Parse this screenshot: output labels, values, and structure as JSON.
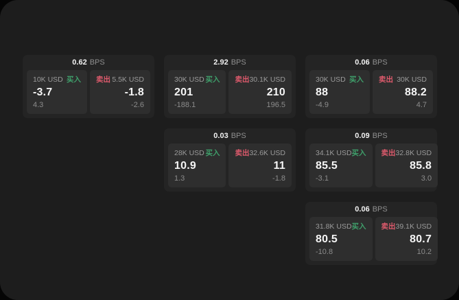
{
  "colors": {
    "outer_background": "#050505",
    "window_background": "#1d1d1d",
    "card_background": "#242424",
    "panel_background": "#2e2e2e",
    "buy_green": "#3f9e6a",
    "sell_red": "#dd5a6c",
    "primary_text": "#f5f5f5",
    "muted_text": "#9b9b9b"
  },
  "labels": {
    "bps_unit": "BPS",
    "buy": "买入",
    "sell": "卖出"
  },
  "cards": [
    {
      "bps": "0.62",
      "unit": "BPS",
      "buy": {
        "amount": "10K USD",
        "side": "买入",
        "value": "-3.7",
        "delta": "4.3"
      },
      "sell": {
        "side": "卖出",
        "amount": "5.5K USD",
        "value": "-1.8",
        "delta": "-2.6"
      }
    },
    {
      "bps": "2.92",
      "unit": "BPS",
      "buy": {
        "amount": "30K USD",
        "side": "买入",
        "value": "201",
        "delta": "-188.1"
      },
      "sell": {
        "side": "卖出",
        "amount": "30.1K USD",
        "value": "210",
        "delta": "196.5"
      }
    },
    {
      "bps": "0.06",
      "unit": "BPS",
      "buy": {
        "amount": "30K USD",
        "side": "买入",
        "value": "88",
        "delta": "-4.9"
      },
      "sell": {
        "side": "卖出",
        "amount": "30K USD",
        "value": "88.2",
        "delta": "4.7"
      }
    },
    {
      "bps": "0.03",
      "unit": "BPS",
      "buy": {
        "amount": "28K USD",
        "side": "买入",
        "value": "10.9",
        "delta": "1.3"
      },
      "sell": {
        "side": "卖出",
        "amount": "32.6K USD",
        "value": "11",
        "delta": "-1.8"
      }
    },
    {
      "bps": "0.09",
      "unit": "BPS",
      "buy": {
        "amount": "34.1K USD",
        "side": "买入",
        "value": "85.5",
        "delta": "-3.1"
      },
      "sell": {
        "side": "卖出",
        "amount": "32.8K USD",
        "value": "85.8",
        "delta": "3.0"
      }
    },
    {
      "bps": "0.06",
      "unit": "BPS",
      "buy": {
        "amount": "31.8K USD",
        "side": "买入",
        "value": "80.5",
        "delta": "-10.8"
      },
      "sell": {
        "side": "卖出",
        "amount": "39.1K USD",
        "value": "80.7",
        "delta": "10.2"
      }
    }
  ]
}
